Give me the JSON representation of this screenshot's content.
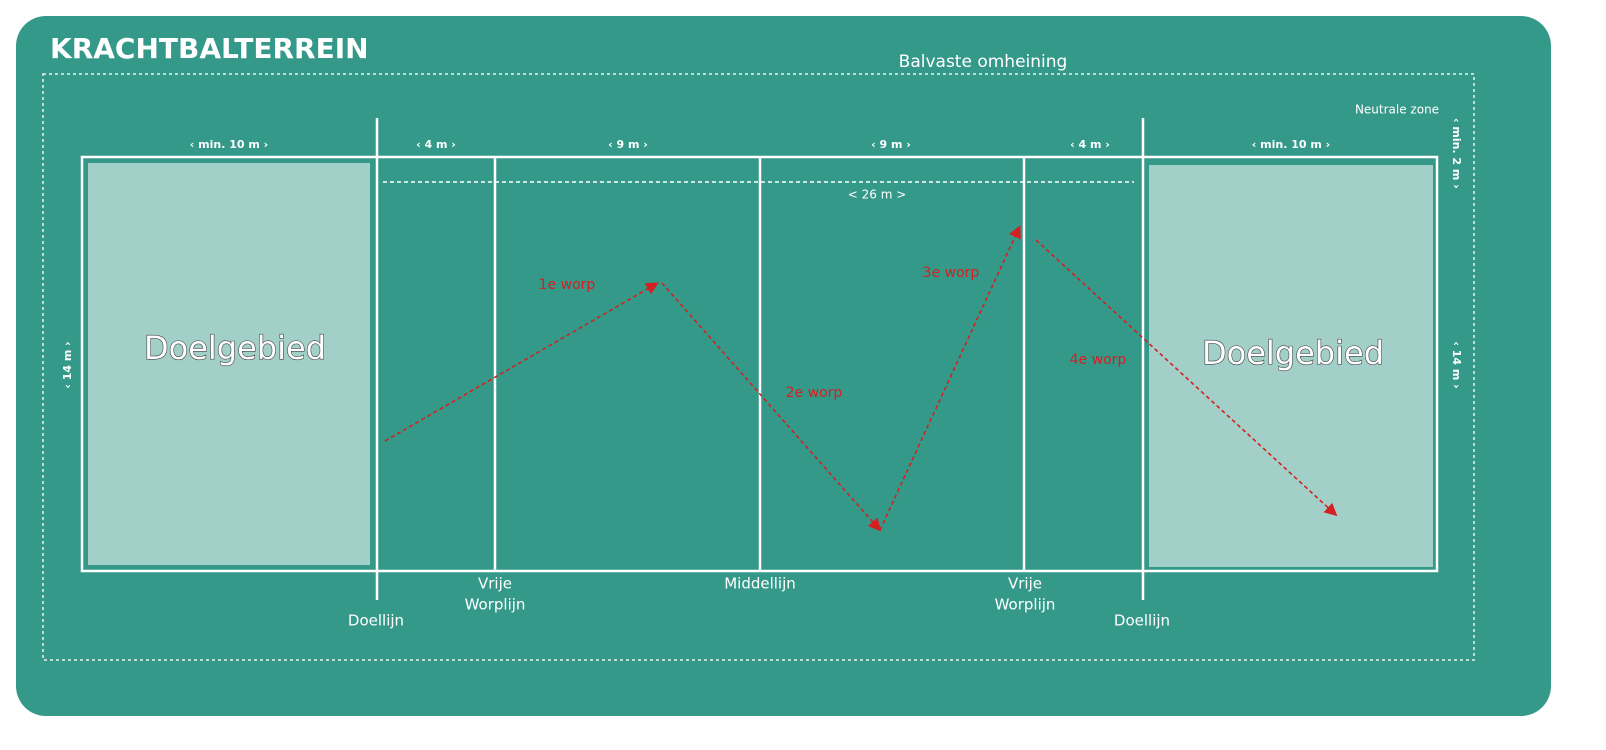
{
  "header": {
    "title": "KRACHTBALTERREIN"
  },
  "fence": {
    "label": "Balvaste omheining",
    "neutral_zone": "Neutrale zone",
    "neutral_width": "‹ min. 2 m ›"
  },
  "dimensions": {
    "top": [
      "‹ min. 10 m ›",
      "‹ 4 m ›",
      "‹ 9 m ›",
      "‹ 9 m ›",
      "‹ 4 m ›",
      "‹ min. 10 m ›"
    ],
    "between_goal_lines": "< 26 m >",
    "width_left": "‹ 14 m ›",
    "width_right": "‹ 14 m ›"
  },
  "goal_areas": [
    "Doelgebied",
    "Doelgebied"
  ],
  "throws": [
    "1e worp",
    "2e worp",
    "3e worp",
    "4e worp"
  ],
  "lines": {
    "goal_left": "Doellijn",
    "free_throw_left": [
      "Vrije",
      "Worplijn"
    ],
    "middle": "Middellijn",
    "free_throw_right": [
      "Vrije",
      "Worplijn"
    ],
    "goal_right": "Doellijn"
  }
}
